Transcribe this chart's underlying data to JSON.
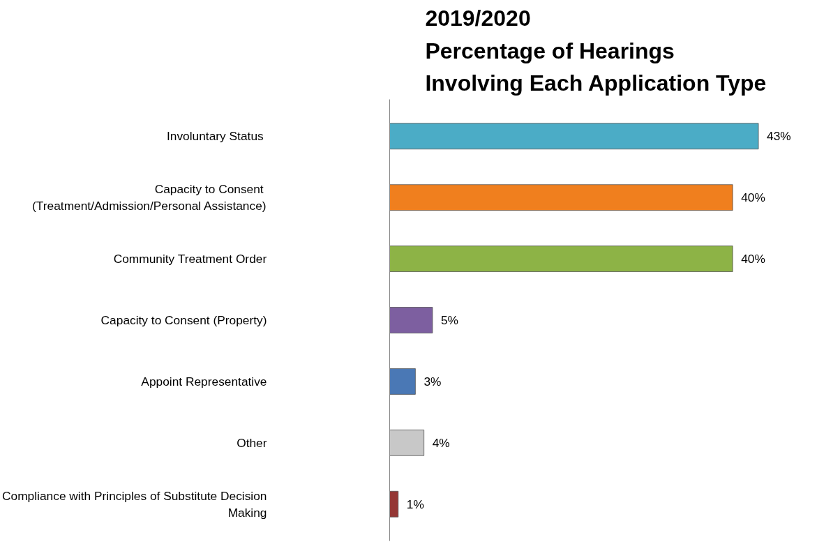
{
  "chart_data": {
    "type": "bar",
    "orientation": "horizontal",
    "title": "2019/2020\nPercentage of Hearings\nInvolving Each Application Type",
    "categories": [
      "Involuntary Status ",
      "Capacity to  Consent\n(Treatment/Admission/Personal Assistance)",
      "Community Treatment Order",
      "Capacity to Consent (Property)",
      "Appoint Representative",
      "Other",
      "Compliance with Principles of Substitute Decision\nMaking"
    ],
    "values": [
      43,
      40,
      40,
      5,
      3,
      4,
      1
    ],
    "colors": [
      "#4bacc6",
      "#f07f1e",
      "#8db346",
      "#7d5fa0",
      "#4a78b5",
      "#c8c8c8",
      "#953735"
    ],
    "value_labels": [
      "43%",
      "40%",
      "40%",
      "5%",
      "3%",
      "4%",
      "1%"
    ],
    "grid": false
  }
}
